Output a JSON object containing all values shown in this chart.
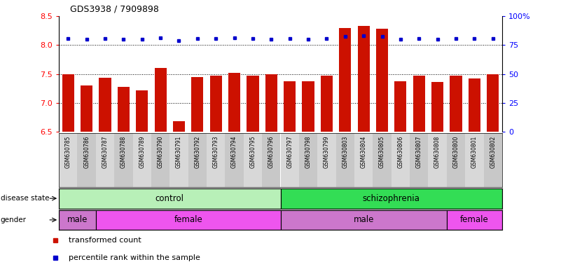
{
  "title": "GDS3938 / 7909898",
  "samples": [
    "GSM630785",
    "GSM630786",
    "GSM630787",
    "GSM630788",
    "GSM630789",
    "GSM630790",
    "GSM630791",
    "GSM630792",
    "GSM630793",
    "GSM630794",
    "GSM630795",
    "GSM630796",
    "GSM630797",
    "GSM630798",
    "GSM630799",
    "GSM630803",
    "GSM630804",
    "GSM630805",
    "GSM630806",
    "GSM630807",
    "GSM630808",
    "GSM630800",
    "GSM630801",
    "GSM630802"
  ],
  "bar_values": [
    7.5,
    7.3,
    7.43,
    7.28,
    7.22,
    7.6,
    6.68,
    7.45,
    7.47,
    7.52,
    7.47,
    7.5,
    7.38,
    7.38,
    7.47,
    8.3,
    8.33,
    8.28,
    7.38,
    7.47,
    7.36,
    7.47,
    7.42,
    7.5
  ],
  "blue_values": [
    80.5,
    80.3,
    80.8,
    80.0,
    80.2,
    81.2,
    78.8,
    80.5,
    80.5,
    81.0,
    80.5,
    80.0,
    80.5,
    80.3,
    80.5,
    82.5,
    82.8,
    82.2,
    80.0,
    80.5,
    79.8,
    80.8,
    80.5,
    80.8
  ],
  "disease_groups": [
    {
      "label": "control",
      "start": 0,
      "end": 12,
      "color": "#b8f0b8"
    },
    {
      "label": "schizophrenia",
      "start": 12,
      "end": 24,
      "color": "#33dd55"
    }
  ],
  "gender_groups": [
    {
      "label": "male",
      "start": 0,
      "end": 2,
      "color": "#cc77cc"
    },
    {
      "label": "female",
      "start": 2,
      "end": 12,
      "color": "#ee55ee"
    },
    {
      "label": "male",
      "start": 12,
      "end": 21,
      "color": "#cc77cc"
    },
    {
      "label": "female",
      "start": 21,
      "end": 24,
      "color": "#ee55ee"
    }
  ],
  "ylim_left": [
    6.5,
    8.5
  ],
  "ylim_right": [
    0,
    100
  ],
  "yticks_left": [
    6.5,
    7.0,
    7.5,
    8.0,
    8.5
  ],
  "yticks_right": [
    0,
    25,
    50,
    75,
    100
  ],
  "bar_color": "#CC1100",
  "dot_color": "#0000CC",
  "grid_values": [
    7.0,
    7.5,
    8.0
  ],
  "legend_items": [
    {
      "label": "transformed count",
      "color": "#CC1100"
    },
    {
      "label": "percentile rank within the sample",
      "color": "#0000CC"
    }
  ],
  "xtick_colors": [
    "#d8d8d8",
    "#c8c8c8"
  ]
}
